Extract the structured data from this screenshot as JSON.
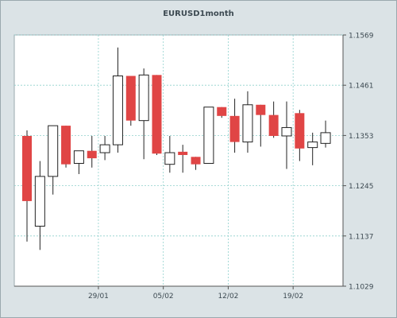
{
  "chart_data": {
    "type": "candlestick",
    "title": "EURUSD1month",
    "y_range": [
      1.1029,
      1.1569
    ],
    "y_ticks": [
      "1.1569",
      "1.1461",
      "1.1353",
      "1.1245",
      "1.1137",
      "1.1029"
    ],
    "x_ticks": [
      "29/01",
      "05/02",
      "12/02",
      "19/02"
    ],
    "grid": true,
    "colors": {
      "bull_body": "#ffffff",
      "bear_body": "#e04545",
      "outline": "#222222",
      "grid": "#8fd0cc",
      "plot_bg": "#ffffff",
      "frame_bg": "#dbe3e6",
      "text": "#3d4a52"
    },
    "candles": [
      {
        "open": 1.1352,
        "high": 1.1364,
        "low": 1.1125,
        "close": 1.1212
      },
      {
        "open": 1.1158,
        "high": 1.1298,
        "low": 1.1107,
        "close": 1.1265
      },
      {
        "open": 1.1265,
        "high": 1.1374,
        "low": 1.1226,
        "close": 1.1374
      },
      {
        "open": 1.1374,
        "high": 1.1374,
        "low": 1.1284,
        "close": 1.1291
      },
      {
        "open": 1.1293,
        "high": 1.132,
        "low": 1.127,
        "close": 1.132
      },
      {
        "open": 1.132,
        "high": 1.1352,
        "low": 1.1284,
        "close": 1.1304
      },
      {
        "open": 1.1316,
        "high": 1.1352,
        "low": 1.13,
        "close": 1.1333
      },
      {
        "open": 1.1333,
        "high": 1.1542,
        "low": 1.1316,
        "close": 1.1481
      },
      {
        "open": 1.1481,
        "high": 1.1481,
        "low": 1.1374,
        "close": 1.1385
      },
      {
        "open": 1.1385,
        "high": 1.1497,
        "low": 1.1302,
        "close": 1.1483
      },
      {
        "open": 1.1483,
        "high": 1.1483,
        "low": 1.1311,
        "close": 1.1314
      },
      {
        "open": 1.1291,
        "high": 1.1352,
        "low": 1.1273,
        "close": 1.1316
      },
      {
        "open": 1.1318,
        "high": 1.1333,
        "low": 1.1273,
        "close": 1.1311
      },
      {
        "open": 1.1307,
        "high": 1.1307,
        "low": 1.1279,
        "close": 1.1291
      },
      {
        "open": 1.1293,
        "high": 1.1414,
        "low": 1.1293,
        "close": 1.1414
      },
      {
        "open": 1.1414,
        "high": 1.1414,
        "low": 1.1391,
        "close": 1.1395
      },
      {
        "open": 1.1395,
        "high": 1.1432,
        "low": 1.1316,
        "close": 1.1339
      },
      {
        "open": 1.1339,
        "high": 1.1448,
        "low": 1.1316,
        "close": 1.1419
      },
      {
        "open": 1.1419,
        "high": 1.1419,
        "low": 1.1329,
        "close": 1.1397
      },
      {
        "open": 1.1397,
        "high": 1.1426,
        "low": 1.1348,
        "close": 1.1352
      },
      {
        "open": 1.1352,
        "high": 1.1426,
        "low": 1.1281,
        "close": 1.137
      },
      {
        "open": 1.1401,
        "high": 1.1408,
        "low": 1.1298,
        "close": 1.1325
      },
      {
        "open": 1.1327,
        "high": 1.1359,
        "low": 1.1289,
        "close": 1.1339
      },
      {
        "open": 1.1336,
        "high": 1.1385,
        "low": 1.1327,
        "close": 1.1359
      }
    ]
  }
}
